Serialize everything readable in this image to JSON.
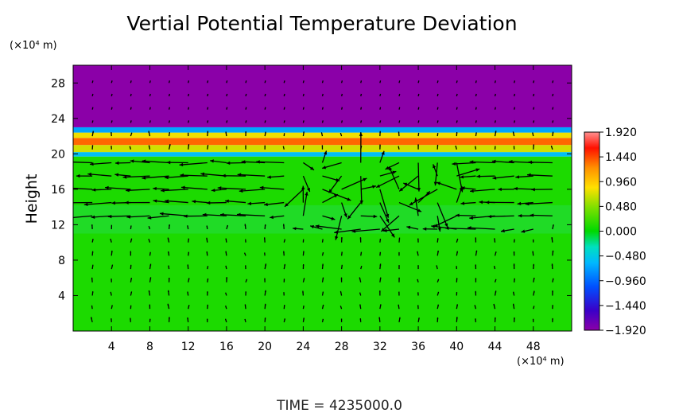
{
  "chart_data": {
    "type": "heatmap",
    "title": "Vertial Potential Temperature Deviation",
    "ylabel": "Height",
    "xunit": "(×10⁴ m)",
    "yunit": "(×10⁴ m)",
    "xlim": [
      0,
      52
    ],
    "ylim": [
      0,
      30
    ],
    "xticks": [
      "4",
      "8",
      "12",
      "16",
      "20",
      "24",
      "28",
      "32",
      "36",
      "40",
      "44",
      "48"
    ],
    "xtick_values": [
      4,
      8,
      12,
      16,
      20,
      24,
      28,
      32,
      36,
      40,
      44,
      48
    ],
    "yticks": [
      "4",
      "8",
      "12",
      "16",
      "20",
      "24",
      "28"
    ],
    "ytick_values": [
      4,
      8,
      12,
      16,
      20,
      24,
      28
    ],
    "colorbar": {
      "labels": [
        "1.920",
        "1.440",
        "0.960",
        "0.480",
        "0.000",
        "−0.480",
        "−0.960",
        "−1.440",
        "−1.920"
      ],
      "values": [
        1.92,
        1.44,
        0.96,
        0.48,
        0.0,
        -0.48,
        -0.96,
        -1.44,
        -1.92
      ],
      "min": -1.92,
      "max": 1.92
    },
    "field_bands": [
      {
        "y0": 0,
        "y1": 19.7,
        "value": 0.1
      },
      {
        "y0": 19.7,
        "y1": 20.2,
        "value": -0.55
      },
      {
        "y0": 20.2,
        "y1": 21.0,
        "value": 0.7
      },
      {
        "y0": 21.0,
        "y1": 21.8,
        "value": 1.35
      },
      {
        "y0": 21.8,
        "y1": 22.4,
        "value": 0.8
      },
      {
        "y0": 22.4,
        "y1": 23.0,
        "value": -0.7
      },
      {
        "y0": 23.0,
        "y1": 30,
        "value": -1.92
      }
    ],
    "vector_field": {
      "note_regions": [
        {
          "y0": 13,
          "y1": 20,
          "flow": "westward"
        },
        {
          "x0": 24,
          "x1": 40,
          "y0": 11,
          "y1": 20,
          "flow": "turbulent"
        }
      ]
    }
  },
  "time_label": "TIME  =  4235000.0"
}
